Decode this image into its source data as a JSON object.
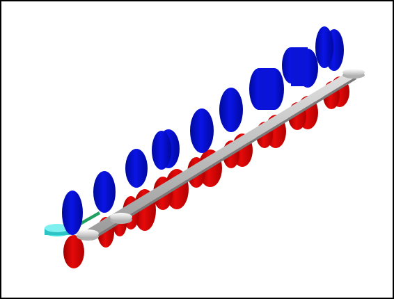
{
  "viewer": {
    "background_color": "#ffffff",
    "border_color": "#000000"
  },
  "scene": {
    "description_visible_text": "",
    "colors": {
      "upper_rolls": "#0a14e6",
      "upper_rolls_shade": "#000a9a",
      "lower_rolls": "#e60a0a",
      "lower_rolls_shade": "#a00000",
      "strip": "#c8c8c8",
      "strip_shade": "#8c8c8c",
      "guide_disk": "#e6e6e6",
      "entry_disk": "#40e0e0",
      "entry_accent": "#20a060"
    },
    "upper_roll_count": 9,
    "lower_roll_count": 9,
    "guide_disk_count": 4
  }
}
